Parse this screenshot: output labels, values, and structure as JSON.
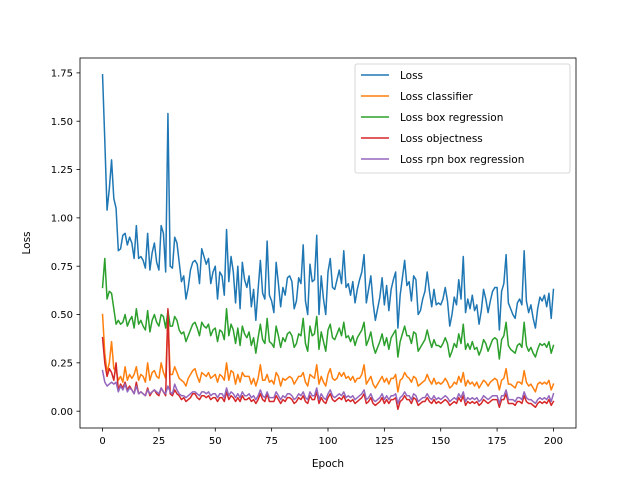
{
  "chart_data": {
    "type": "line",
    "title": "",
    "xlabel": "Epoch",
    "ylabel": "Loss",
    "xlim": [
      -10,
      210
    ],
    "ylim": [
      -0.087,
      1.827
    ],
    "xticks": [
      "0",
      "25",
      "50",
      "75",
      "100",
      "125",
      "150",
      "175",
      "200"
    ],
    "yticks": [
      "0.00",
      "0.25",
      "0.50",
      "0.75",
      "1.00",
      "1.25",
      "1.50",
      "1.75"
    ],
    "legend_position": "top-right",
    "grid": false,
    "colors": [
      "#1f77b4",
      "#ff7f0e",
      "#2ca02c",
      "#d62728",
      "#9467bd"
    ],
    "series": [
      {
        "name": "Loss",
        "color": "#1f77b4",
        "values": [
          1.74,
          1.4,
          1.04,
          1.15,
          1.3,
          1.1,
          1.05,
          0.83,
          0.84,
          0.91,
          0.92,
          0.86,
          0.9,
          0.87,
          0.79,
          0.96,
          0.79,
          0.8,
          0.78,
          0.74,
          0.92,
          0.73,
          0.82,
          0.87,
          0.77,
          0.73,
          0.96,
          0.92,
          0.72,
          1.54,
          0.75,
          0.74,
          0.9,
          0.87,
          0.77,
          0.67,
          0.7,
          0.58,
          0.64,
          0.73,
          0.77,
          0.78,
          0.76,
          0.66,
          0.84,
          0.8,
          0.76,
          0.79,
          0.66,
          0.72,
          0.75,
          0.58,
          0.72,
          0.7,
          0.6,
          0.94,
          0.67,
          0.8,
          0.72,
          0.56,
          0.75,
          0.53,
          0.77,
          0.68,
          0.64,
          0.7,
          0.54,
          0.63,
          0.47,
          0.63,
          0.78,
          0.61,
          0.58,
          0.88,
          0.6,
          0.57,
          0.51,
          0.77,
          0.66,
          0.54,
          0.64,
          0.6,
          0.69,
          0.7,
          0.67,
          0.53,
          0.57,
          0.69,
          0.66,
          0.86,
          0.57,
          0.5,
          0.76,
          0.67,
          0.68,
          0.91,
          0.5,
          0.7,
          0.58,
          0.5,
          0.72,
          0.79,
          0.64,
          0.63,
          0.68,
          0.73,
          0.66,
          0.83,
          0.64,
          0.66,
          0.6,
          0.67,
          0.56,
          0.63,
          0.68,
          0.72,
          0.81,
          0.56,
          0.63,
          0.7,
          0.56,
          0.47,
          0.53,
          0.59,
          0.69,
          0.55,
          0.65,
          0.52,
          0.63,
          0.68,
          0.72,
          0.43,
          0.6,
          0.69,
          0.78,
          0.65,
          0.67,
          0.57,
          0.7,
          0.68,
          0.5,
          0.52,
          0.58,
          0.62,
          0.72,
          0.62,
          0.54,
          0.63,
          0.55,
          0.56,
          0.55,
          0.58,
          0.64,
          0.57,
          0.44,
          0.5,
          0.59,
          0.55,
          0.68,
          0.58,
          0.8,
          0.51,
          0.58,
          0.53,
          0.6,
          0.52,
          0.55,
          0.45,
          0.52,
          0.63,
          0.58,
          0.51,
          0.57,
          0.62,
          0.64,
          0.64,
          0.42,
          0.62,
          0.66,
          0.81,
          0.56,
          0.53,
          0.5,
          0.48,
          0.56,
          0.58,
          0.55,
          0.83,
          0.57,
          0.51,
          0.55,
          0.48,
          0.43,
          0.53,
          0.59,
          0.57,
          0.6,
          0.54,
          0.61,
          0.48,
          0.63
        ]
      },
      {
        "name": "Loss classifier",
        "color": "#ff7f0e",
        "values": [
          0.5,
          0.3,
          0.2,
          0.25,
          0.36,
          0.22,
          0.21,
          0.16,
          0.18,
          0.15,
          0.23,
          0.16,
          0.19,
          0.17,
          0.19,
          0.23,
          0.16,
          0.19,
          0.18,
          0.15,
          0.25,
          0.16,
          0.2,
          0.21,
          0.18,
          0.17,
          0.25,
          0.2,
          0.17,
          0.5,
          0.19,
          0.19,
          0.23,
          0.2,
          0.17,
          0.16,
          0.15,
          0.13,
          0.17,
          0.19,
          0.21,
          0.22,
          0.18,
          0.15,
          0.2,
          0.19,
          0.18,
          0.2,
          0.17,
          0.18,
          0.19,
          0.15,
          0.19,
          0.18,
          0.16,
          0.25,
          0.16,
          0.21,
          0.2,
          0.14,
          0.19,
          0.15,
          0.2,
          0.18,
          0.18,
          0.18,
          0.14,
          0.17,
          0.13,
          0.17,
          0.24,
          0.16,
          0.16,
          0.19,
          0.15,
          0.16,
          0.14,
          0.2,
          0.18,
          0.13,
          0.17,
          0.16,
          0.17,
          0.18,
          0.17,
          0.14,
          0.16,
          0.18,
          0.18,
          0.2,
          0.15,
          0.13,
          0.19,
          0.18,
          0.17,
          0.24,
          0.14,
          0.18,
          0.15,
          0.13,
          0.19,
          0.22,
          0.17,
          0.16,
          0.17,
          0.2,
          0.18,
          0.2,
          0.17,
          0.18,
          0.16,
          0.18,
          0.15,
          0.17,
          0.17,
          0.19,
          0.24,
          0.14,
          0.16,
          0.18,
          0.14,
          0.12,
          0.14,
          0.16,
          0.18,
          0.15,
          0.17,
          0.14,
          0.17,
          0.17,
          0.19,
          0.1,
          0.16,
          0.17,
          0.2,
          0.18,
          0.17,
          0.15,
          0.18,
          0.17,
          0.13,
          0.14,
          0.15,
          0.16,
          0.19,
          0.16,
          0.14,
          0.17,
          0.14,
          0.15,
          0.14,
          0.15,
          0.17,
          0.15,
          0.12,
          0.13,
          0.15,
          0.14,
          0.18,
          0.15,
          0.2,
          0.13,
          0.16,
          0.14,
          0.15,
          0.13,
          0.15,
          0.12,
          0.14,
          0.16,
          0.15,
          0.13,
          0.15,
          0.16,
          0.17,
          0.16,
          0.11,
          0.16,
          0.17,
          0.22,
          0.14,
          0.14,
          0.13,
          0.12,
          0.15,
          0.15,
          0.14,
          0.21,
          0.15,
          0.13,
          0.14,
          0.12,
          0.1,
          0.14,
          0.15,
          0.14,
          0.15,
          0.14,
          0.16,
          0.11,
          0.14
        ]
      },
      {
        "name": "Loss box regression",
        "color": "#2ca02c",
        "values": [
          0.64,
          0.79,
          0.58,
          0.62,
          0.61,
          0.53,
          0.45,
          0.47,
          0.45,
          0.46,
          0.5,
          0.44,
          0.47,
          0.49,
          0.43,
          0.53,
          0.45,
          0.47,
          0.44,
          0.42,
          0.52,
          0.41,
          0.47,
          0.5,
          0.46,
          0.44,
          0.5,
          0.49,
          0.43,
          0.52,
          0.44,
          0.44,
          0.49,
          0.47,
          0.42,
          0.4,
          0.41,
          0.36,
          0.39,
          0.42,
          0.45,
          0.46,
          0.43,
          0.39,
          0.46,
          0.44,
          0.43,
          0.45,
          0.39,
          0.42,
          0.43,
          0.36,
          0.42,
          0.41,
          0.37,
          0.53,
          0.39,
          0.45,
          0.42,
          0.35,
          0.43,
          0.34,
          0.44,
          0.4,
          0.38,
          0.41,
          0.34,
          0.38,
          0.3,
          0.38,
          0.45,
          0.37,
          0.35,
          0.48,
          0.36,
          0.35,
          0.33,
          0.44,
          0.39,
          0.33,
          0.38,
          0.36,
          0.4,
          0.41,
          0.39,
          0.33,
          0.35,
          0.4,
          0.39,
          0.48,
          0.35,
          0.31,
          0.44,
          0.39,
          0.4,
          0.49,
          0.32,
          0.41,
          0.36,
          0.31,
          0.42,
          0.45,
          0.38,
          0.37,
          0.4,
          0.43,
          0.39,
          0.46,
          0.38,
          0.39,
          0.36,
          0.39,
          0.34,
          0.38,
          0.4,
          0.42,
          0.46,
          0.34,
          0.37,
          0.41,
          0.34,
          0.3,
          0.33,
          0.36,
          0.4,
          0.34,
          0.38,
          0.32,
          0.38,
          0.4,
          0.42,
          0.28,
          0.36,
          0.4,
          0.44,
          0.39,
          0.39,
          0.35,
          0.41,
          0.4,
          0.31,
          0.33,
          0.35,
          0.37,
          0.42,
          0.37,
          0.33,
          0.37,
          0.34,
          0.34,
          0.33,
          0.35,
          0.38,
          0.35,
          0.28,
          0.31,
          0.35,
          0.33,
          0.4,
          0.35,
          0.45,
          0.32,
          0.35,
          0.32,
          0.36,
          0.32,
          0.33,
          0.29,
          0.32,
          0.37,
          0.35,
          0.31,
          0.34,
          0.37,
          0.38,
          0.37,
          0.27,
          0.37,
          0.39,
          0.46,
          0.34,
          0.32,
          0.31,
          0.3,
          0.34,
          0.35,
          0.33,
          0.46,
          0.34,
          0.31,
          0.33,
          0.3,
          0.28,
          0.32,
          0.35,
          0.34,
          0.35,
          0.33,
          0.36,
          0.3,
          0.34
        ]
      },
      {
        "name": "Loss objectness",
        "color": "#d62728",
        "values": [
          0.38,
          0.25,
          0.18,
          0.22,
          0.2,
          0.16,
          0.25,
          0.11,
          0.14,
          0.12,
          0.15,
          0.11,
          0.13,
          0.11,
          0.09,
          0.15,
          0.09,
          0.1,
          0.09,
          0.08,
          0.12,
          0.08,
          0.1,
          0.11,
          0.09,
          0.08,
          0.12,
          0.1,
          0.08,
          0.53,
          0.09,
          0.08,
          0.11,
          0.09,
          0.08,
          0.06,
          0.07,
          0.05,
          0.06,
          0.07,
          0.09,
          0.09,
          0.07,
          0.06,
          0.08,
          0.08,
          0.07,
          0.08,
          0.06,
          0.07,
          0.07,
          0.05,
          0.07,
          0.07,
          0.05,
          0.1,
          0.06,
          0.08,
          0.07,
          0.05,
          0.07,
          0.05,
          0.08,
          0.06,
          0.06,
          0.07,
          0.05,
          0.06,
          0.04,
          0.06,
          0.09,
          0.06,
          0.05,
          0.09,
          0.05,
          0.05,
          0.05,
          0.08,
          0.06,
          0.04,
          0.06,
          0.05,
          0.07,
          0.07,
          0.06,
          0.04,
          0.05,
          0.07,
          0.06,
          0.08,
          0.05,
          0.04,
          0.08,
          0.06,
          0.06,
          0.1,
          0.04,
          0.07,
          0.05,
          0.04,
          0.07,
          0.09,
          0.06,
          0.05,
          0.06,
          0.07,
          0.06,
          0.08,
          0.05,
          0.06,
          0.05,
          0.06,
          0.04,
          0.05,
          0.06,
          0.07,
          0.09,
          0.04,
          0.05,
          0.07,
          0.04,
          0.03,
          0.04,
          0.05,
          0.07,
          0.04,
          0.06,
          0.04,
          0.06,
          0.06,
          0.07,
          0.01,
          0.05,
          0.06,
          0.08,
          0.06,
          0.06,
          0.04,
          0.07,
          0.06,
          0.03,
          0.04,
          0.05,
          0.05,
          0.07,
          0.05,
          0.04,
          0.06,
          0.04,
          0.05,
          0.04,
          0.05,
          0.06,
          0.05,
          0.03,
          0.04,
          0.05,
          0.04,
          0.07,
          0.05,
          0.08,
          0.03,
          0.05,
          0.04,
          0.05,
          0.04,
          0.05,
          0.03,
          0.04,
          0.06,
          0.05,
          0.04,
          0.05,
          0.06,
          0.06,
          0.06,
          0.02,
          0.06,
          0.06,
          0.09,
          0.04,
          0.04,
          0.04,
          0.03,
          0.05,
          0.05,
          0.04,
          0.08,
          0.05,
          0.04,
          0.04,
          0.03,
          0.02,
          0.04,
          0.05,
          0.04,
          0.05,
          0.04,
          0.06,
          0.03,
          0.05
        ]
      },
      {
        "name": "Loss rpn box regression",
        "color": "#9467bd",
        "values": [
          0.21,
          0.15,
          0.13,
          0.14,
          0.15,
          0.14,
          0.15,
          0.1,
          0.13,
          0.11,
          0.14,
          0.1,
          0.12,
          0.11,
          0.09,
          0.13,
          0.09,
          0.1,
          0.09,
          0.08,
          0.11,
          0.09,
          0.1,
          0.11,
          0.1,
          0.09,
          0.12,
          0.1,
          0.09,
          0.13,
          0.1,
          0.09,
          0.14,
          0.11,
          0.09,
          0.08,
          0.08,
          0.07,
          0.08,
          0.09,
          0.1,
          0.1,
          0.09,
          0.08,
          0.1,
          0.1,
          0.09,
          0.1,
          0.08,
          0.09,
          0.09,
          0.07,
          0.09,
          0.09,
          0.07,
          0.12,
          0.08,
          0.1,
          0.09,
          0.07,
          0.09,
          0.07,
          0.1,
          0.08,
          0.08,
          0.09,
          0.07,
          0.08,
          0.06,
          0.08,
          0.11,
          0.08,
          0.07,
          0.1,
          0.07,
          0.07,
          0.07,
          0.1,
          0.08,
          0.06,
          0.08,
          0.07,
          0.09,
          0.09,
          0.08,
          0.06,
          0.07,
          0.09,
          0.08,
          0.1,
          0.07,
          0.06,
          0.1,
          0.08,
          0.08,
          0.12,
          0.06,
          0.09,
          0.07,
          0.06,
          0.09,
          0.11,
          0.08,
          0.07,
          0.08,
          0.09,
          0.08,
          0.1,
          0.07,
          0.08,
          0.07,
          0.08,
          0.06,
          0.07,
          0.08,
          0.09,
          0.11,
          0.06,
          0.07,
          0.09,
          0.06,
          0.05,
          0.06,
          0.07,
          0.09,
          0.06,
          0.08,
          0.06,
          0.08,
          0.08,
          0.09,
          0.04,
          0.07,
          0.08,
          0.1,
          0.08,
          0.08,
          0.06,
          0.09,
          0.08,
          0.05,
          0.06,
          0.07,
          0.07,
          0.09,
          0.07,
          0.06,
          0.08,
          0.06,
          0.07,
          0.06,
          0.07,
          0.08,
          0.07,
          0.05,
          0.06,
          0.07,
          0.06,
          0.09,
          0.07,
          0.1,
          0.05,
          0.07,
          0.06,
          0.07,
          0.06,
          0.07,
          0.05,
          0.06,
          0.08,
          0.07,
          0.06,
          0.07,
          0.08,
          0.08,
          0.08,
          0.04,
          0.08,
          0.08,
          0.11,
          0.06,
          0.06,
          0.06,
          0.05,
          0.07,
          0.07,
          0.06,
          0.1,
          0.07,
          0.06,
          0.06,
          0.05,
          0.04,
          0.06,
          0.07,
          0.06,
          0.07,
          0.06,
          0.08,
          0.05,
          0.09
        ]
      }
    ]
  }
}
